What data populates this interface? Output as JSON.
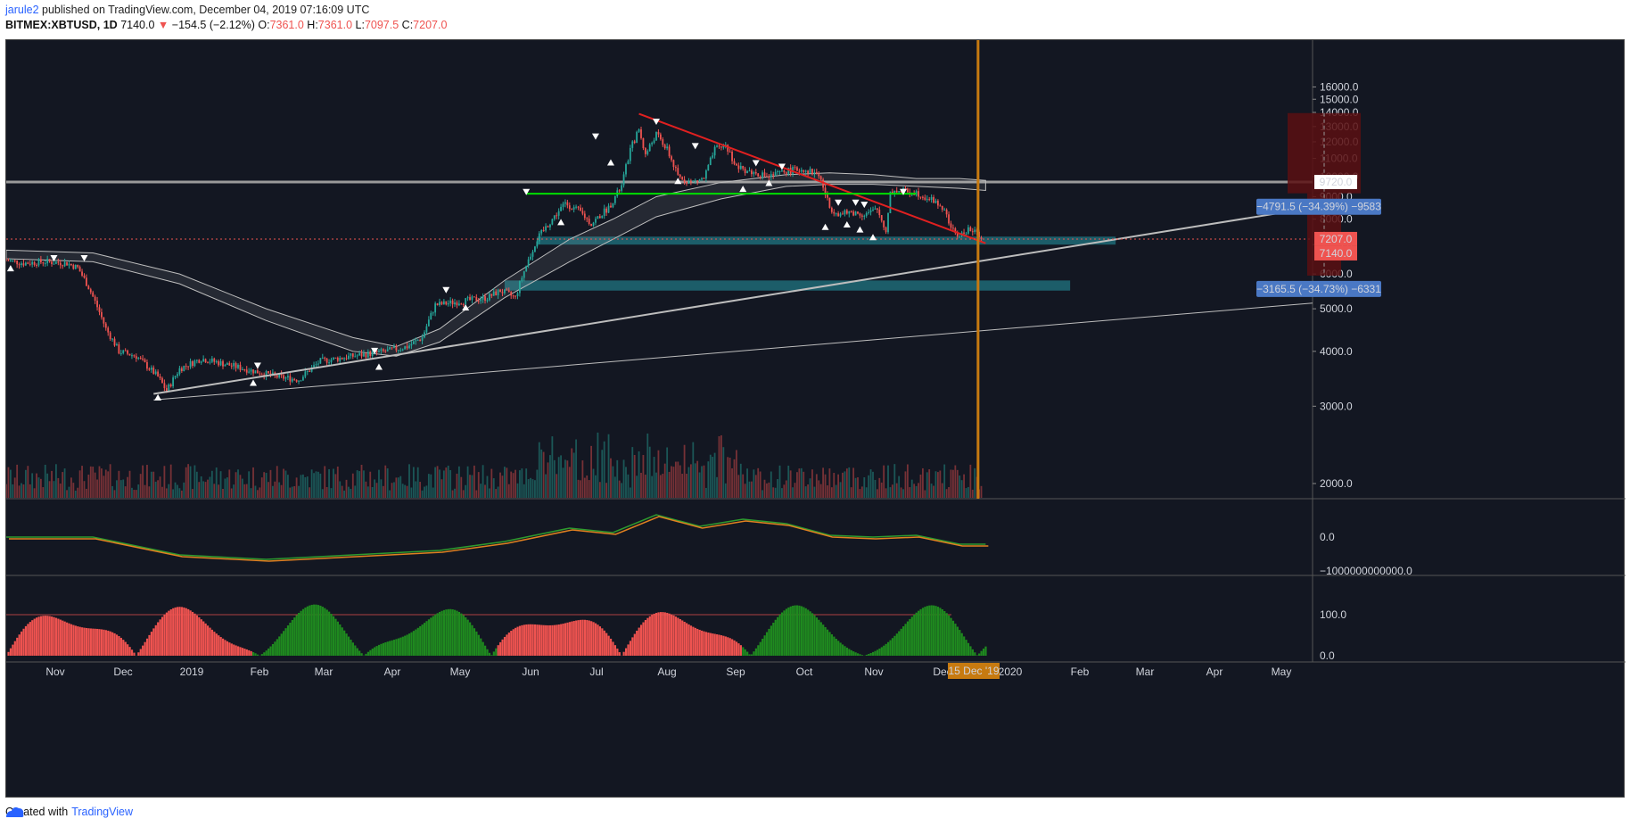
{
  "header": {
    "user": "jarule2",
    "published": " published on TradingView.com, December 04, 2019 07:16:09 UTC",
    "symbol": "BITMEX:XBTUSD, 1D",
    "last": "7140.0",
    "change": "−154.5 (−2.12%)",
    "o_label": "O:",
    "o_value": "7361.0",
    "h_label": "H:",
    "h_value": "7361.0",
    "l_label": "L:",
    "l_value": "7097.5",
    "c_label": "C:",
    "c_value": "7207.0"
  },
  "footer": {
    "created": "Created with",
    "brand": "TradingView"
  },
  "colors": {
    "background": "#131722",
    "up": "#26a69a",
    "down": "#ef5350",
    "trendline": "#e02020",
    "support": "#00e000",
    "zone": "#1e6a75",
    "vline": "#c77a10"
  },
  "chart_data": [
    {
      "type": "candlestick",
      "symbol": "BITMEX:XBTUSD",
      "interval": "1D",
      "x_ticks": [
        "Nov",
        "Dec",
        "2019",
        "Feb",
        "Mar",
        "Apr",
        "May",
        "Jun",
        "Jul",
        "Aug",
        "Sep",
        "Oct",
        "Nov",
        "Dec",
        "2020",
        "Feb",
        "Mar",
        "Apr",
        "May"
      ],
      "x_marker_label": "15 Dec '19",
      "y_ticks": [
        "16000.0",
        "15000.0",
        "14000.0",
        "13000.0",
        "12000.0",
        "11000.0",
        "10000.0",
        "9000.0",
        "8000.0",
        "7000.0",
        "6000.0",
        "5000.0",
        "4000.0",
        "3000.0",
        "2000.0"
      ],
      "ylim": [
        1600,
        16500
      ],
      "price_path": [
        [
          0,
          6450
        ],
        [
          8,
          6350
        ],
        [
          18,
          6400
        ],
        [
          28,
          6350
        ],
        [
          33,
          6200
        ],
        [
          38,
          5600
        ],
        [
          46,
          4500
        ],
        [
          52,
          4000
        ],
        [
          60,
          3900
        ],
        [
          70,
          3500
        ],
        [
          74,
          3250
        ],
        [
          80,
          3650
        ],
        [
          90,
          3850
        ],
        [
          100,
          3750
        ],
        [
          115,
          3600
        ],
        [
          125,
          3500
        ],
        [
          135,
          3450
        ],
        [
          145,
          3800
        ],
        [
          160,
          3900
        ],
        [
          175,
          4000
        ],
        [
          185,
          4100
        ],
        [
          192,
          4300
        ],
        [
          198,
          5100
        ],
        [
          210,
          5200
        ],
        [
          222,
          5300
        ],
        [
          228,
          5500
        ],
        [
          235,
          5300
        ],
        [
          238,
          5900
        ],
        [
          245,
          7200
        ],
        [
          252,
          8000
        ],
        [
          258,
          8700
        ],
        [
          265,
          8300
        ],
        [
          270,
          7800
        ],
        [
          278,
          8500
        ],
        [
          284,
          9500
        ],
        [
          288,
          11500
        ],
        [
          292,
          12800
        ],
        [
          295,
          11200
        ],
        [
          300,
          12500
        ],
        [
          305,
          11500
        ],
        [
          310,
          10000
        ],
        [
          316,
          9700
        ],
        [
          322,
          9900
        ],
        [
          327,
          11500
        ],
        [
          332,
          11800
        ],
        [
          337,
          10500
        ],
        [
          345,
          10200
        ],
        [
          352,
          10000
        ],
        [
          360,
          10300
        ],
        [
          368,
          10400
        ],
        [
          375,
          10100
        ],
        [
          380,
          8500
        ],
        [
          385,
          8200
        ],
        [
          390,
          8300
        ],
        [
          396,
          8200
        ],
        [
          402,
          8400
        ],
        [
          406,
          7500
        ],
        [
          408,
          9200
        ],
        [
          412,
          9300
        ],
        [
          420,
          9200
        ],
        [
          428,
          8800
        ],
        [
          432,
          8500
        ],
        [
          437,
          7500
        ],
        [
          440,
          7300
        ],
        [
          444,
          7600
        ],
        [
          450,
          7300
        ]
      ],
      "price_label": "7207.0",
      "price_label_2": "7140.0",
      "level_label": "9720.0",
      "horizontal_level": 9720,
      "measure_1": {
        "text": "−4791.5 (−34.39%) −9583",
        "from": 13950,
        "to": 9160
      },
      "measure_2": {
        "text": "−3165.5 (−34.73%) −6331",
        "from": 9160,
        "to": 5950
      },
      "support_line": 9140,
      "zone_1": [
        7000,
        7300
      ],
      "zone_2": [
        5500,
        5800
      ]
    },
    {
      "type": "line",
      "name": "oscillator",
      "y_ticks": [
        "0.0",
        "−1000000000000.0"
      ]
    },
    {
      "type": "bar",
      "name": "histogram",
      "y_ticks": [
        "100.0",
        "0.0"
      ],
      "threshold": 100
    }
  ]
}
